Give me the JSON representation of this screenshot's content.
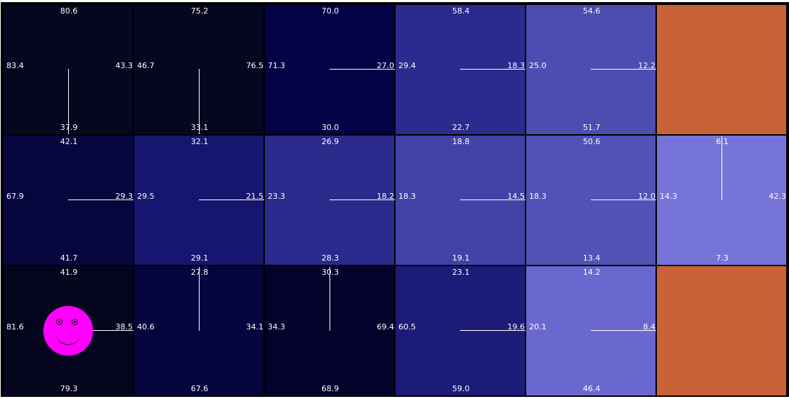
{
  "grid": {
    "rows": [
      [
        {
          "color": "#05061f",
          "up": "80.6",
          "down": "37.9",
          "left": "83.4",
          "right": "43.3",
          "arrow": "down"
        },
        {
          "color": "#05061f",
          "up": "75.2",
          "down": "33.1",
          "left": "46.7",
          "right": "76.5",
          "arrow": "down"
        },
        {
          "color": "#020246",
          "up": "70.0",
          "down": "30.0",
          "left": "71.3",
          "right": "27.0",
          "arrow": "right"
        },
        {
          "color": "#2b2a8e",
          "up": "58.4",
          "down": "22.7",
          "left": "29.4",
          "right": "18.3",
          "arrow": "right"
        },
        {
          "color": "#4c4cb1",
          "up": "54.6",
          "down": "51.7",
          "left": "25.0",
          "right": "12.2",
          "arrow": "right"
        },
        {
          "color": "#c96237",
          "terminal": true
        }
      ],
      [
        {
          "color": "#06063f",
          "up": "42.1",
          "down": "41.7",
          "left": "67.9",
          "right": "29.3",
          "arrow": "right"
        },
        {
          "color": "#16166f",
          "up": "32.1",
          "down": "29.1",
          "left": "29.5",
          "right": "21.5",
          "arrow": "right"
        },
        {
          "color": "#2a2a8c",
          "up": "26.9",
          "down": "28.3",
          "left": "23.3",
          "right": "18.2",
          "arrow": "right"
        },
        {
          "color": "#4242a6",
          "up": "18.8",
          "down": "19.1",
          "left": "18.3",
          "right": "14.5",
          "arrow": "right"
        },
        {
          "color": "#5151b6",
          "up": "50.6",
          "down": "13.4",
          "left": "18.3",
          "right": "12.0",
          "arrow": "right"
        },
        {
          "color": "#7774d9",
          "up": "6.1",
          "down": "7.3",
          "left": "14.3",
          "right": "42.3",
          "arrow": "up"
        }
      ],
      [
        {
          "color": "#04041d",
          "up": "41.9",
          "down": "79.3",
          "left": "81.6",
          "right": "38.5",
          "arrow": "right",
          "agent": true
        },
        {
          "color": "#04053e",
          "up": "27.8",
          "down": "67.6",
          "left": "40.6",
          "right": "34.1",
          "arrow": "up"
        },
        {
          "color": "#02022a",
          "up": "30.3",
          "down": "68.9",
          "left": "34.3",
          "right": "69.4",
          "arrow": "up"
        },
        {
          "color": "#1c1c78",
          "up": "23.1",
          "down": "59.0",
          "left": "60.5",
          "right": "19.6",
          "arrow": "right"
        },
        {
          "color": "#6a68ce",
          "up": "14.2",
          "down": "46.4",
          "left": "20.1",
          "right": "8.4",
          "arrow": "right"
        },
        {
          "color": "#c96237",
          "terminal": true
        }
      ]
    ]
  }
}
